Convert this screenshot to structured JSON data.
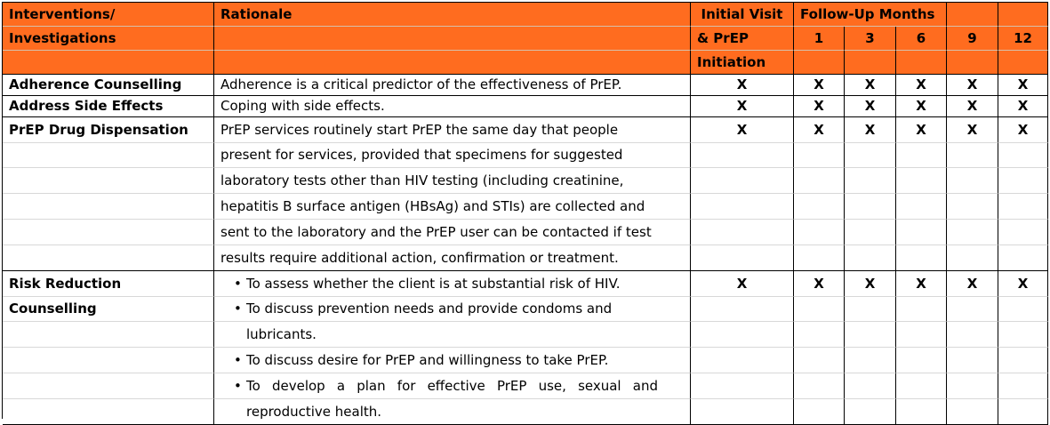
{
  "header": {
    "col1_line1": "Interventions/",
    "col1_line2": "Investigations",
    "col2": "Rationale",
    "col3_line1": "Initial Visit",
    "col3_line2": "& PrEP",
    "col3_line3": "Initiation",
    "followup": "Follow-Up Months",
    "months": [
      "1",
      "3",
      "6",
      "9",
      "12"
    ]
  },
  "rows": {
    "adherence": {
      "label": "Adherence Counselling",
      "rationale": "Adherence is a critical predictor of the effectiveness of PrEP.",
      "marks": [
        "X",
        "X",
        "X",
        "X",
        "X",
        "X"
      ]
    },
    "side_effects": {
      "label": "Address Side Effects",
      "rationale": "Coping with side effects.",
      "marks": [
        "X",
        "X",
        "X",
        "X",
        "X",
        "X"
      ]
    },
    "dispensation": {
      "label": "PrEP Drug Dispensation",
      "rationale_lines": [
        "PrEP services routinely start PrEP the same day that people",
        "present for services, provided that specimens for suggested",
        "laboratory tests other than HIV testing (including creatinine,",
        "hepatitis B surface antigen (HBsAg) and STIs) are collected and",
        "sent to the laboratory and the PrEP user can be contacted if test",
        "results require additional action, confirmation or treatment."
      ],
      "marks": [
        "X",
        "X",
        "X",
        "X",
        "X",
        "X"
      ]
    },
    "risk_reduction": {
      "label_line1": "Risk Reduction",
      "label_line2": "Counselling",
      "bullet": "•",
      "rationale_lines": [
        "To assess whether the client is at substantial risk of HIV.",
        "To discuss prevention needs and provide condoms and",
        "lubricants.",
        "To discuss desire for PrEP and willingness to take PrEP.",
        "To develop a plan for effective PrEP use, sexual and",
        "reproductive health."
      ],
      "marks": [
        "X",
        "X",
        "X",
        "X",
        "X",
        "X"
      ]
    }
  },
  "colors": {
    "header_bg": "#ff6c1f",
    "border": "#000000"
  }
}
